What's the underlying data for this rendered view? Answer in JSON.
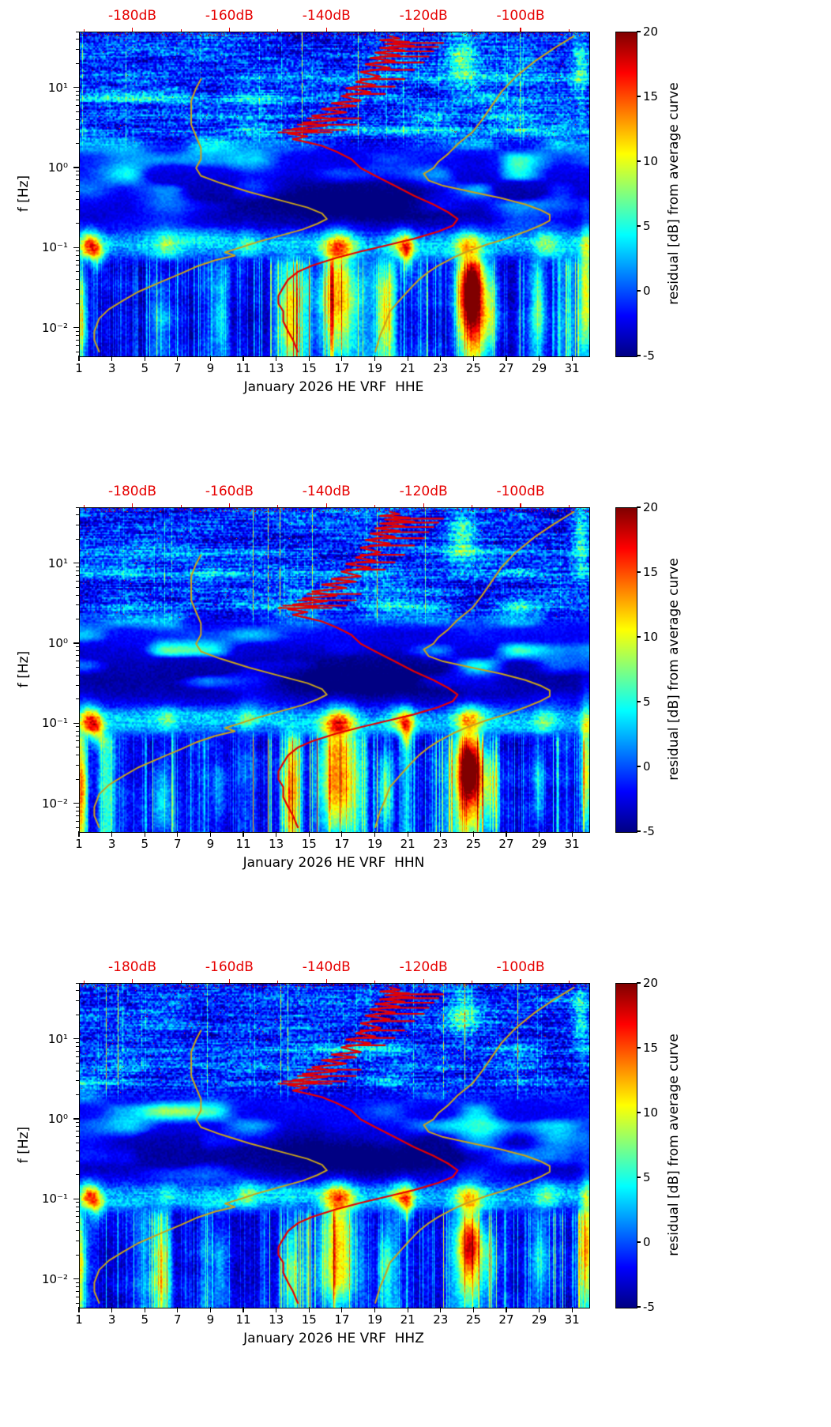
{
  "figure": {
    "panel_count": 3
  },
  "panels": [
    {
      "channel": "HHE",
      "xlabel": "January 2026 HE VRF  HHE"
    },
    {
      "channel": "HHN",
      "xlabel": "January 2026 HE VRF  HHN"
    },
    {
      "channel": "HHZ",
      "xlabel": "January 2026 HE VRF  HHZ"
    }
  ],
  "axes": {
    "ylabel": "f [Hz]",
    "y_tick_labels": [
      "10¹",
      "10⁰",
      "10⁻¹",
      "10⁻²"
    ],
    "x_tick_labels": [
      "1",
      "3",
      "5",
      "7",
      "9",
      "11",
      "13",
      "15",
      "17",
      "19",
      "21",
      "23",
      "25",
      "27",
      "29",
      "31"
    ],
    "top_dB_labels": [
      "-180dB",
      "-160dB",
      "-140dB",
      "-120dB",
      "-100dB"
    ],
    "colorbar_label": "residual [dB] from average curve",
    "colorbar_tick_labels": [
      "20",
      "15",
      "10",
      "5",
      "0",
      "-5"
    ]
  },
  "chart_data": {
    "type": "heatmap",
    "subtype": "spectrogram-residual-with-reference-curves",
    "x": {
      "tick_values": [
        1,
        3,
        5,
        7,
        9,
        11,
        13,
        15,
        17,
        19,
        21,
        23,
        25,
        27,
        29,
        31
      ],
      "range": [
        1,
        32
      ]
    },
    "y": {
      "label": "f [Hz]",
      "scale": "log",
      "tick_values": [
        10,
        1,
        0.1,
        0.01
      ],
      "range_hz": [
        0.0045,
        50
      ],
      "log_top": 1.7,
      "log_bottom": -2.35
    },
    "top_axis": {
      "tick_values": [
        -180,
        -160,
        -140,
        -120,
        -100
      ],
      "range": [
        -191,
        -86
      ],
      "color": "#e60000"
    },
    "colorbar": {
      "label": "residual [dB] from average curve",
      "tick_values": [
        20,
        15,
        10,
        5,
        0,
        -5
      ],
      "range": [
        -5,
        20
      ],
      "colormap": "jet"
    },
    "colors": {
      "median_curve": "#e60000",
      "reference_curves": "#c9a21c"
    },
    "curves": {
      "red_median_psd": [
        [
          45,
          -127
        ],
        [
          42,
          -125
        ],
        [
          40,
          -129
        ],
        [
          38,
          -123
        ],
        [
          36,
          -128
        ],
        [
          34,
          -122
        ],
        [
          32,
          -129
        ],
        [
          30,
          -124
        ],
        [
          28,
          -130
        ],
        [
          26,
          -125
        ],
        [
          24,
          -131
        ],
        [
          22,
          -126
        ],
        [
          20,
          -132
        ],
        [
          18,
          -127
        ],
        [
          16,
          -133
        ],
        [
          14,
          -129
        ],
        [
          12,
          -134
        ],
        [
          11,
          -130
        ],
        [
          10,
          -136
        ],
        [
          9,
          -131
        ],
        [
          8,
          -137
        ],
        [
          7,
          -133
        ],
        [
          6.5,
          -139
        ],
        [
          6,
          -134
        ],
        [
          5.5,
          -141
        ],
        [
          5,
          -136
        ],
        [
          4.5,
          -143
        ],
        [
          4,
          -138
        ],
        [
          3.7,
          -145
        ],
        [
          3.4,
          -140
        ],
        [
          3.1,
          -147
        ],
        [
          2.9,
          -142
        ],
        [
          2.7,
          -148
        ],
        [
          2.5,
          -144
        ],
        [
          2.3,
          -147
        ],
        [
          2.1,
          -144
        ],
        [
          1.9,
          -141
        ],
        [
          1.6,
          -138
        ],
        [
          1.3,
          -135
        ],
        [
          1.0,
          -133
        ],
        [
          0.8,
          -130
        ],
        [
          0.6,
          -126
        ],
        [
          0.45,
          -122
        ],
        [
          0.35,
          -118
        ],
        [
          0.28,
          -115
        ],
        [
          0.23,
          -113
        ],
        [
          0.19,
          -114
        ],
        [
          0.16,
          -117
        ],
        [
          0.13,
          -122
        ],
        [
          0.11,
          -127
        ],
        [
          0.09,
          -133
        ],
        [
          0.075,
          -138
        ],
        [
          0.06,
          -143
        ],
        [
          0.05,
          -146
        ],
        [
          0.04,
          -148
        ],
        [
          0.032,
          -149
        ],
        [
          0.025,
          -150
        ],
        [
          0.02,
          -150
        ],
        [
          0.016,
          -149
        ],
        [
          0.012,
          -149
        ],
        [
          0.009,
          -148
        ],
        [
          0.007,
          -147
        ],
        [
          0.005,
          -146
        ]
      ],
      "red_spikes": [
        [
          37,
          -126,
          -116
        ],
        [
          33,
          -127,
          -117
        ],
        [
          29,
          -128,
          -118
        ],
        [
          25,
          -129,
          -119
        ],
        [
          21,
          -130,
          -120
        ],
        [
          17,
          -131,
          -122
        ],
        [
          13,
          -133,
          -124
        ],
        [
          10.5,
          -134,
          -126
        ],
        [
          8.5,
          -136,
          -128
        ],
        [
          4.2,
          -144,
          -133
        ],
        [
          3.5,
          -146,
          -134
        ],
        [
          3.0,
          -149,
          -136
        ],
        [
          2.8,
          -150,
          -139
        ]
      ],
      "yellow_low_reference": [
        [
          13,
          -166
        ],
        [
          10,
          -167
        ],
        [
          7,
          -168
        ],
        [
          5,
          -168
        ],
        [
          3.5,
          -168
        ],
        [
          2.5,
          -167
        ],
        [
          1.8,
          -166
        ],
        [
          1.3,
          -166
        ],
        [
          1.0,
          -167
        ],
        [
          0.8,
          -166
        ],
        [
          0.65,
          -162
        ],
        [
          0.5,
          -156
        ],
        [
          0.4,
          -150
        ],
        [
          0.32,
          -144
        ],
        [
          0.27,
          -141
        ],
        [
          0.23,
          -140
        ],
        [
          0.2,
          -142
        ],
        [
          0.17,
          -145
        ],
        [
          0.14,
          -150
        ],
        [
          0.12,
          -154
        ],
        [
          0.1,
          -158
        ],
        [
          0.088,
          -161
        ],
        [
          0.08,
          -159
        ],
        [
          0.07,
          -163
        ],
        [
          0.058,
          -167
        ],
        [
          0.048,
          -170
        ],
        [
          0.038,
          -174
        ],
        [
          0.028,
          -179
        ],
        [
          0.022,
          -182
        ],
        [
          0.017,
          -185
        ],
        [
          0.013,
          -187
        ],
        [
          0.009,
          -188
        ],
        [
          0.007,
          -188
        ],
        [
          0.005,
          -187
        ]
      ],
      "yellow_high_reference": [
        [
          45,
          -89
        ],
        [
          32,
          -93
        ],
        [
          22,
          -97
        ],
        [
          14,
          -101
        ],
        [
          9,
          -104
        ],
        [
          6,
          -106
        ],
        [
          4,
          -108
        ],
        [
          2.8,
          -110
        ],
        [
          2,
          -113
        ],
        [
          1.5,
          -115
        ],
        [
          1.2,
          -117
        ],
        [
          1.0,
          -118
        ],
        [
          0.85,
          -120
        ],
        [
          0.7,
          -119
        ],
        [
          0.6,
          -116
        ],
        [
          0.5,
          -110
        ],
        [
          0.42,
          -104
        ],
        [
          0.35,
          -99
        ],
        [
          0.3,
          -96
        ],
        [
          0.26,
          -94
        ],
        [
          0.22,
          -94
        ],
        [
          0.19,
          -96
        ],
        [
          0.16,
          -99
        ],
        [
          0.13,
          -103
        ],
        [
          0.11,
          -107
        ],
        [
          0.09,
          -111
        ],
        [
          0.075,
          -114
        ],
        [
          0.06,
          -117
        ],
        [
          0.05,
          -119
        ],
        [
          0.04,
          -121
        ],
        [
          0.03,
          -123
        ],
        [
          0.022,
          -125
        ],
        [
          0.016,
          -127
        ],
        [
          0.011,
          -128
        ],
        [
          0.008,
          -129
        ],
        [
          0.005,
          -130
        ]
      ]
    }
  }
}
